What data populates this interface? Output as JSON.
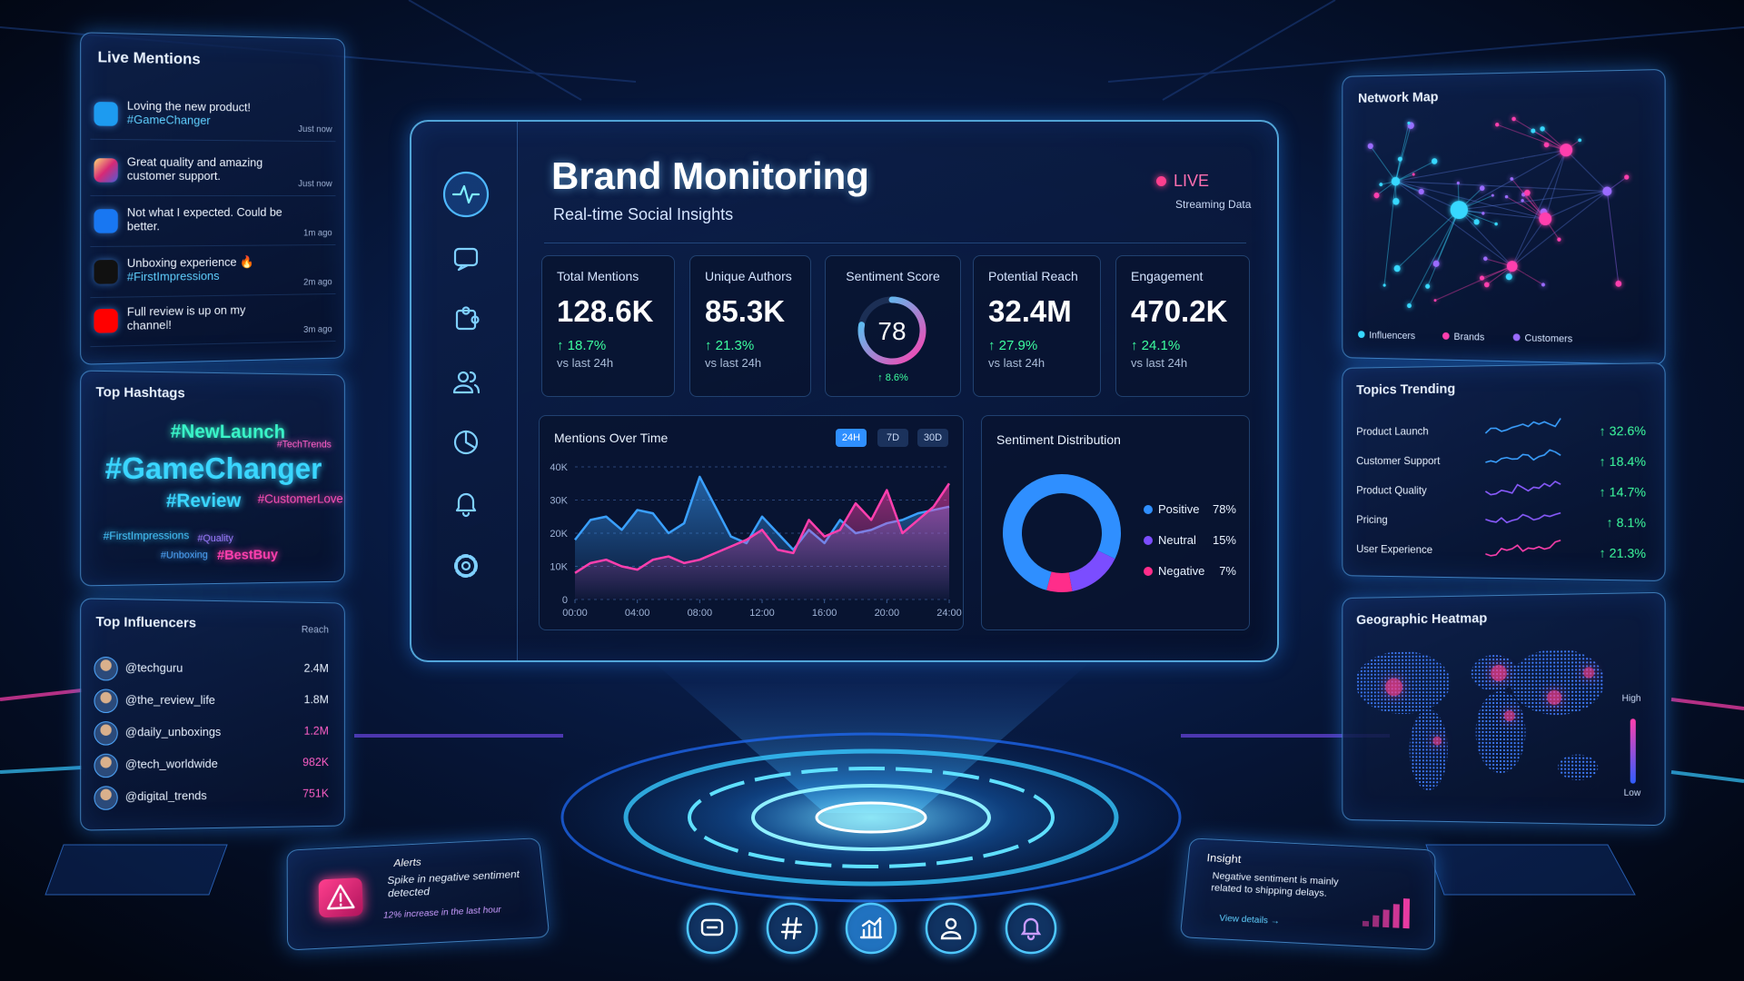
{
  "live_mentions": {
    "title": "Live Mentions",
    "items": [
      {
        "text": "Loving the new product!",
        "tag": "#GameChanger",
        "time": "Just now"
      },
      {
        "text": "Great quality and amazing customer support.",
        "time": "Just now"
      },
      {
        "text": "Not what I expected. Could be better.",
        "time": "1m ago"
      },
      {
        "text": "Unboxing experience 🔥",
        "tag": "#FirstImpressions",
        "time": "2m ago"
      },
      {
        "text": "Full review is up on my channel!",
        "time": "3m ago"
      }
    ]
  },
  "top_hashtags": {
    "title": "Top Hashtags",
    "tags": [
      "#NewLaunch",
      "#TechTrends",
      "#GameChanger",
      "#Review",
      "#CustomerLove",
      "#FirstImpressions",
      "#Quality",
      "#Unboxing",
      "#BestBuy"
    ]
  },
  "top_influencers": {
    "title": "Top Influencers",
    "column": "Reach",
    "rows": [
      {
        "handle": "@techguru",
        "reach": "2.4M"
      },
      {
        "handle": "@the_review_life",
        "reach": "1.8M"
      },
      {
        "handle": "@daily_unboxings",
        "reach": "1.2M"
      },
      {
        "handle": "@tech_worldwide",
        "reach": "982K"
      },
      {
        "handle": "@digital_trends",
        "reach": "751K"
      }
    ]
  },
  "header": {
    "title": "Brand Monitoring",
    "subtitle": "Real-time Social Insights",
    "status": "LIVE",
    "status_note": "Streaming Data"
  },
  "kpis": [
    {
      "label": "Total Mentions",
      "value": "128.6K",
      "change": "↑ 18.7%",
      "note": "vs last 24h"
    },
    {
      "label": "Unique Authors",
      "value": "85.3K",
      "change": "↑ 21.3%",
      "note": "vs last 24h"
    },
    {
      "label": "Sentiment Score",
      "value": 78,
      "ylim": [
        0,
        100
      ],
      "change": "↑ 8.6%"
    },
    {
      "label": "Potential Reach",
      "value": "32.4M",
      "change": "↑ 27.9%",
      "note": "vs last 24h"
    },
    {
      "label": "Engagement",
      "value": "470.2K",
      "change": "↑ 24.1%",
      "note": "vs last 24h"
    }
  ],
  "chart_data": [
    {
      "type": "line",
      "title": "Mentions Over Time",
      "ranges": [
        "24H",
        "7D",
        "30D"
      ],
      "x": [
        0,
        1,
        2,
        3,
        4,
        5,
        6,
        7,
        8,
        9,
        10,
        11,
        12,
        13,
        14,
        15,
        16,
        17,
        18,
        19,
        20,
        21,
        22,
        23,
        24
      ],
      "series": [
        {
          "color": "#3aa0ff",
          "values": [
            18000,
            24000,
            25000,
            21000,
            27000,
            26000,
            20000,
            23000,
            37000,
            28000,
            19000,
            17000,
            25000,
            20000,
            15000,
            21000,
            17000,
            24000,
            20000,
            21000,
            23000,
            24000,
            26000,
            27000,
            28000
          ]
        },
        {
          "color": "#ff3fae",
          "values": [
            8000,
            11000,
            12000,
            10000,
            9000,
            12000,
            13000,
            11000,
            12000,
            14000,
            16000,
            18000,
            21000,
            15000,
            14000,
            24000,
            19000,
            21000,
            29000,
            24000,
            33000,
            20000,
            24000,
            28000,
            35000
          ]
        }
      ],
      "xlim": [
        0,
        24
      ],
      "xticks": [
        {
          "value": 0,
          "label": "00:00"
        },
        {
          "value": 4,
          "label": "04:00"
        },
        {
          "value": 8,
          "label": "08:00"
        },
        {
          "value": 12,
          "label": "12:00"
        },
        {
          "value": 16,
          "label": "16:00"
        },
        {
          "value": 20,
          "label": "20:00"
        },
        {
          "value": 24,
          "label": "24:00"
        }
      ],
      "ylim": [
        0,
        40000
      ],
      "yticks": [
        0,
        {
          "value": 10000,
          "label": "10K"
        },
        {
          "value": 20000,
          "label": "20K"
        },
        {
          "value": 30000,
          "label": "30K"
        },
        {
          "value": 40000,
          "label": "40K"
        }
      ],
      "grid": true
    },
    {
      "type": "pie",
      "title": "Sentiment Distribution",
      "categories": [
        "Positive",
        "Neutral",
        "Negative"
      ],
      "values": [
        78,
        15,
        7
      ],
      "value_labels": [
        "78%",
        "15%",
        "7%"
      ],
      "colors": [
        "#2f8fff",
        "#7b4dff",
        "#ff2d8a"
      ]
    }
  ],
  "network_map": {
    "title": "Network Map",
    "legend": [
      "Influencers",
      "Brands",
      "Customers"
    ]
  },
  "topics_trending": {
    "title": "Topics Trending",
    "rows": [
      {
        "topic": "Product Launch",
        "change": "↑ 32.6%"
      },
      {
        "topic": "Customer Support",
        "change": "↑ 18.4%"
      },
      {
        "topic": "Product Quality",
        "change": "↑ 14.7%"
      },
      {
        "topic": "Pricing",
        "change": "↑ 8.1%"
      },
      {
        "topic": "User Experience",
        "change": "↑ 21.3%"
      }
    ]
  },
  "geo_heatmap": {
    "title": "Geographic Heatmap",
    "scale": [
      "High",
      "Low"
    ]
  },
  "alert": {
    "title": "Alerts",
    "message": "Spike in negative sentiment detected",
    "detail": "12% increase in the last hour"
  },
  "insight": {
    "title": "Insight",
    "message": "Negative sentiment is mainly related to shipping delays.",
    "link": "View details →"
  }
}
